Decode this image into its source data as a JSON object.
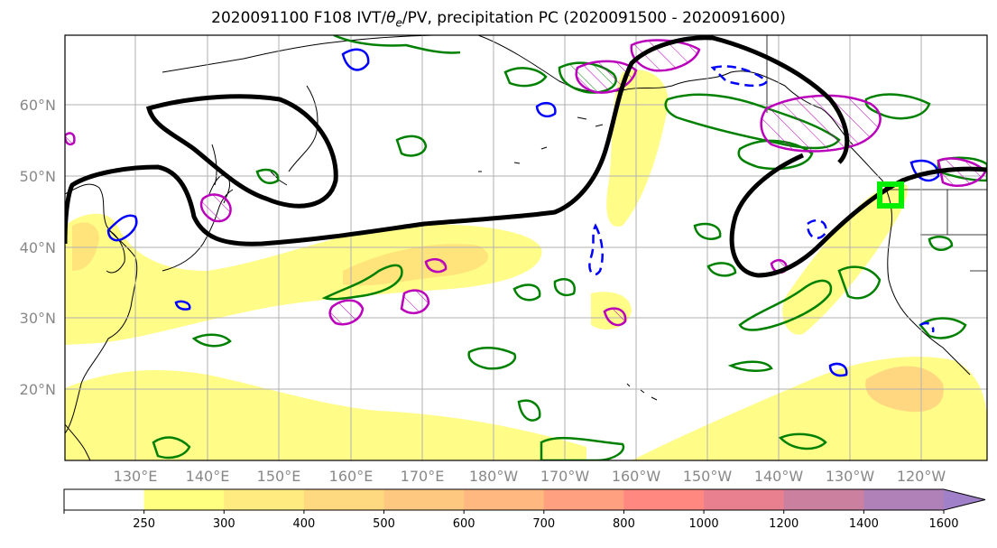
{
  "title": {
    "prefix": "2020091100 F108 IVT/",
    "theta_symbol": "θ",
    "theta_sub": "e",
    "suffix": "/PV, precipitation PC (2020091500 - 2020091600)"
  },
  "map": {
    "lat_labels": [
      "60°N",
      "50°N",
      "40°N",
      "30°N",
      "20°N"
    ],
    "lon_labels": [
      "130°E",
      "140°E",
      "150°E",
      "160°E",
      "170°E",
      "180°W",
      "170°W",
      "160°W",
      "150°W",
      "140°W",
      "130°W",
      "120°W"
    ],
    "grid_color": "#b0b0b0",
    "ivt_colors": [
      "#fffc7a",
      "#ffe680",
      "#ffd27f",
      "#ffc07a"
    ],
    "contour_colors": {
      "theta_e": "#008000",
      "pv": "#bb00bb",
      "negative": "#0000ff",
      "black": "#000000",
      "target_box": "#00ee00"
    }
  },
  "colorbar": {
    "ticks": [
      "250",
      "300",
      "400",
      "500",
      "600",
      "700",
      "800",
      "1000",
      "1200",
      "1400",
      "1600"
    ],
    "colors": [
      "#ffffff",
      "#ffff80",
      "#ffeb80",
      "#ffd980",
      "#ffc880",
      "#ffb880",
      "#ffa080",
      "#ff8880",
      "#e88090",
      "#cc80a0",
      "#b080b8",
      "#a080c8"
    ]
  }
}
